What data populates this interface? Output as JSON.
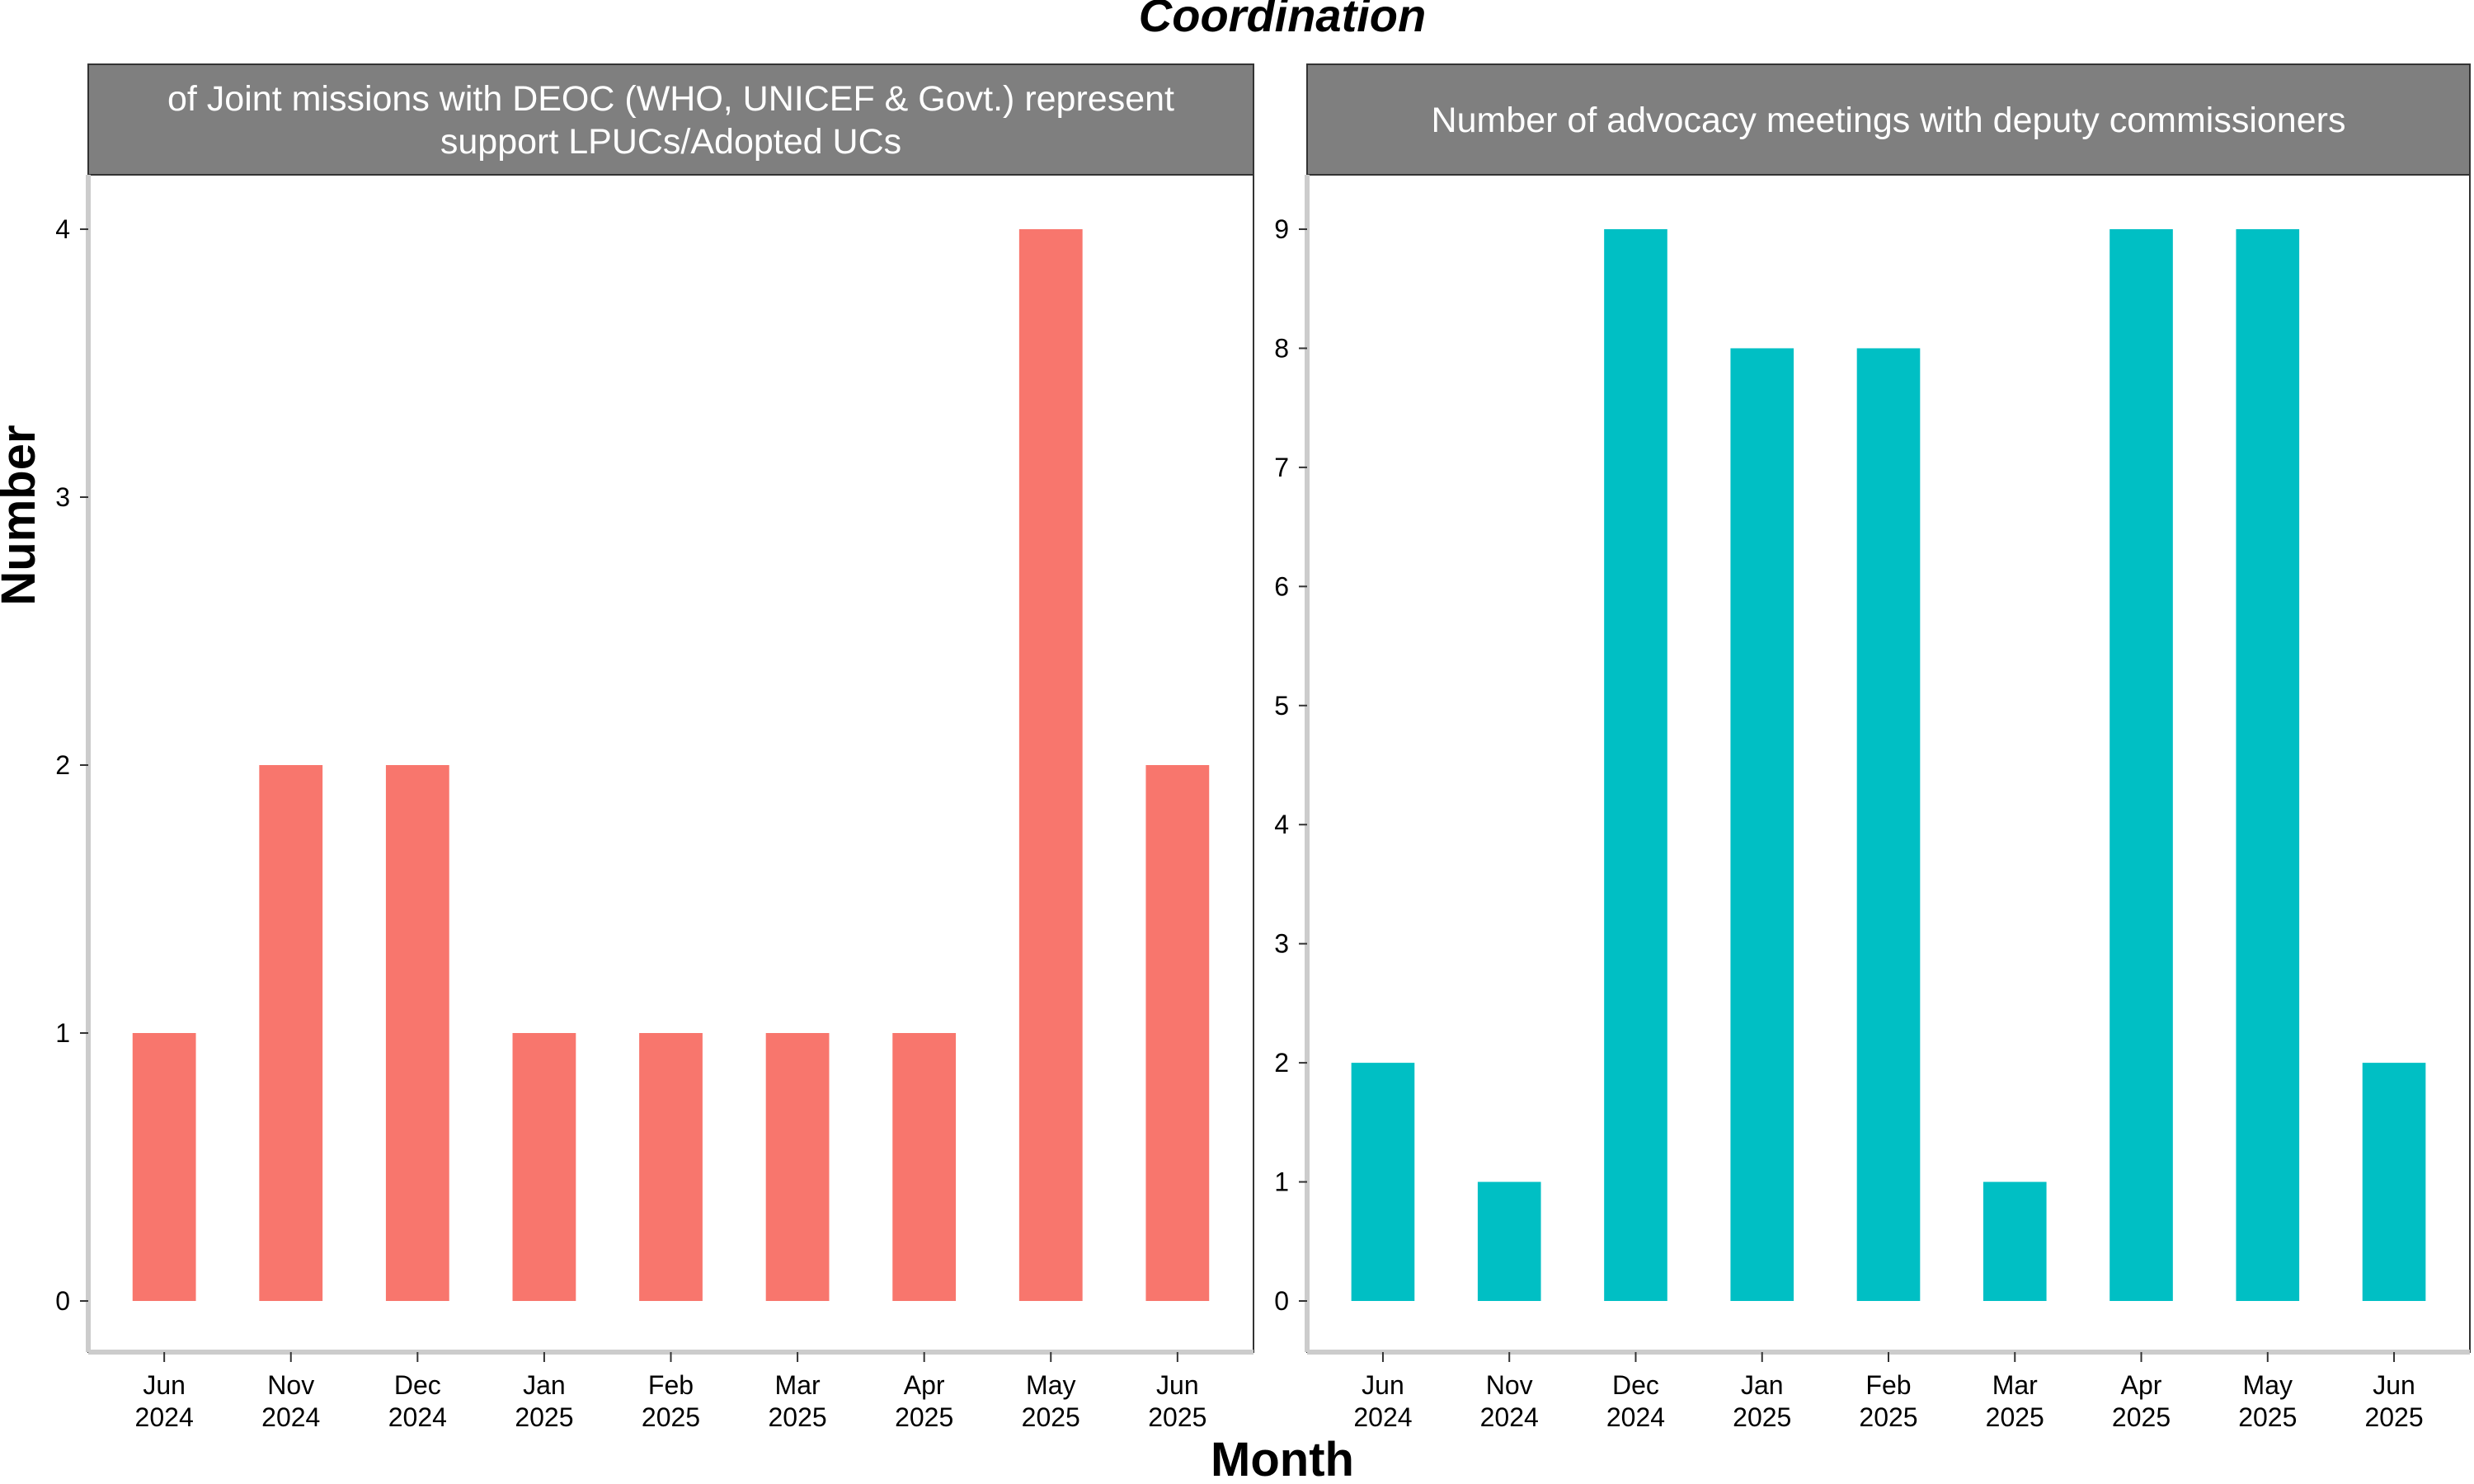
{
  "title": "Coordination",
  "xlabel": "Month",
  "ylabel": "Number",
  "chart_data": [
    {
      "type": "bar",
      "title": "of Joint missions with DEOC (WHO, UNICEF & Govt.) represent support LPUCs/Adopted UCs",
      "title_lines": [
        "of Joint missions with DEOC (WHO, UNICEF & Govt.) represent",
        "support LPUCs/Adopted UCs"
      ],
      "categories": [
        [
          "Jun",
          "2024"
        ],
        [
          "Nov",
          "2024"
        ],
        [
          "Dec",
          "2024"
        ],
        [
          "Jan",
          "2025"
        ],
        [
          "Feb",
          "2025"
        ],
        [
          "Mar",
          "2025"
        ],
        [
          "Apr",
          "2025"
        ],
        [
          "May",
          "2025"
        ],
        [
          "Jun",
          "2025"
        ]
      ],
      "values": [
        1,
        2,
        2,
        1,
        1,
        1,
        1,
        4,
        2
      ],
      "color": "#F8766D",
      "ylim": [
        0,
        4
      ],
      "yticks": [
        0,
        1,
        2,
        3,
        4
      ],
      "grid": false
    },
    {
      "type": "bar",
      "title": "Number of advocacy meetings with deputy commissioners",
      "title_lines": [
        "Number of advocacy meetings with deputy commissioners"
      ],
      "categories": [
        [
          "Jun",
          "2024"
        ],
        [
          "Nov",
          "2024"
        ],
        [
          "Dec",
          "2024"
        ],
        [
          "Jan",
          "2025"
        ],
        [
          "Feb",
          "2025"
        ],
        [
          "Mar",
          "2025"
        ],
        [
          "Apr",
          "2025"
        ],
        [
          "May",
          "2025"
        ],
        [
          "Jun",
          "2025"
        ]
      ],
      "values": [
        2,
        1,
        9,
        8,
        8,
        1,
        9,
        9,
        2
      ],
      "color": "#00BFC4",
      "ylim": [
        0,
        9
      ],
      "yticks": [
        0,
        1,
        2,
        3,
        4,
        5,
        6,
        7,
        8,
        9
      ],
      "grid": false
    }
  ]
}
